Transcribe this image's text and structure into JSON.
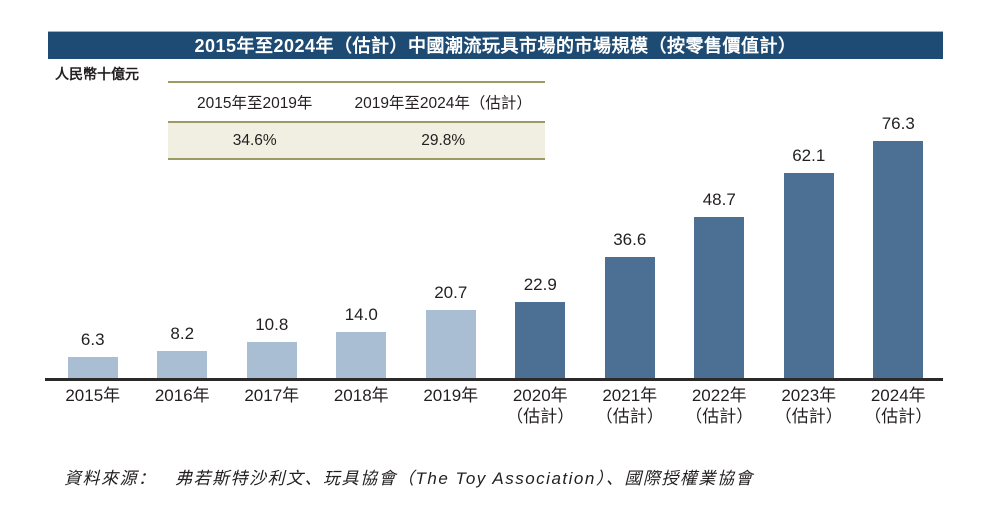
{
  "chart_data": {
    "type": "bar",
    "title": "2015年至2024年（估計）中國潮流玩具市場的市場規模（按零售價值計）",
    "ylabel": "人民幣十億元",
    "categories": [
      "2015年",
      "2016年",
      "2017年",
      "2018年",
      "2019年",
      "2020年（估計）",
      "2021年（估計）",
      "2022年（估計）",
      "2023年（估計）",
      "2024年（估計）"
    ],
    "values": [
      6.3,
      8.2,
      10.8,
      14.0,
      20.7,
      22.9,
      36.6,
      48.7,
      62.1,
      76.3
    ],
    "historical_count": 5,
    "ylim": [
      0,
      80
    ],
    "grid": false,
    "legend": "none",
    "cagr": [
      {
        "period": "2015年至2019年",
        "value": "34.6%"
      },
      {
        "period": "2019年至2024年（估計）",
        "value": "29.8%"
      }
    ]
  },
  "source_note": "資料來源：　弗若斯特沙利文、玩具協會（The Toy Association）、國際授權業協會",
  "colors": {
    "title_bar_bg": "#1e4b73",
    "title_text": "#ffffff",
    "bar_historical": "#a9bdd3",
    "bar_estimate": "#4c6f94",
    "table_line": "#9b9b63",
    "table_value_row_bg": "#f0efe2",
    "axis_line": "#2b2a29",
    "text": "#231f20"
  }
}
